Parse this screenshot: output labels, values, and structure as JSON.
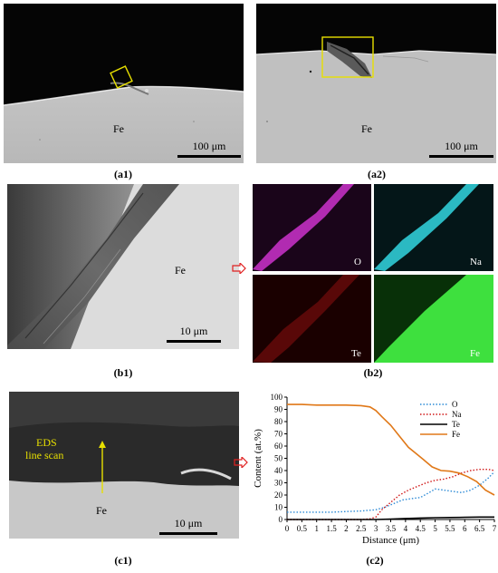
{
  "figure": {
    "panels": {
      "a1": {
        "label": "(a1)",
        "fe": "Fe",
        "scale": "100 μm"
      },
      "a2": {
        "label": "(a2)",
        "fe": "Fe",
        "scale": "100 μm"
      },
      "b1": {
        "label": "(b1)",
        "fe": "Fe",
        "scale": "10 μm"
      },
      "b2": {
        "label": "(b2)",
        "maps": [
          "O",
          "Na",
          "Te",
          "Fe"
        ]
      },
      "c1": {
        "label": "(c1)",
        "fe": "Fe",
        "scale": "10 μm",
        "eds_line1": "EDS",
        "eds_line2": "line scan"
      },
      "c2": {
        "label": "(c2)"
      }
    },
    "colors": {
      "box": "#e8e000",
      "arrow": "#e02020",
      "map_O": "#cc33cc",
      "map_Na": "#33d6e0",
      "map_Te": "#d01818",
      "map_Fe": "#3ee03e"
    }
  },
  "chart_data": {
    "type": "line",
    "xlabel": "Distance (μm)",
    "ylabel": "Content (at.%)",
    "xlim": [
      0,
      7
    ],
    "ylim": [
      0,
      100
    ],
    "xticks": [
      0,
      0.5,
      1,
      1.5,
      2,
      2.5,
      3,
      3.5,
      4,
      4.5,
      5,
      5.5,
      6,
      6.5,
      7
    ],
    "yticks": [
      0,
      10,
      20,
      30,
      40,
      50,
      60,
      70,
      80,
      90,
      100
    ],
    "legend_position": "top-right",
    "series": [
      {
        "name": "O",
        "color": "#2e8bd6",
        "style": "dotted",
        "x": [
          0,
          0.5,
          1,
          1.5,
          2,
          2.5,
          3,
          3.3,
          3.6,
          3.9,
          4.2,
          4.5,
          4.8,
          5.0,
          5.3,
          5.6,
          5.9,
          6.2,
          6.5,
          6.8,
          7
        ],
        "y": [
          6,
          6,
          6,
          6,
          6.5,
          7,
          8,
          10,
          13,
          16,
          17,
          18,
          22,
          25,
          24,
          23,
          22,
          24,
          28,
          34,
          39
        ]
      },
      {
        "name": "Na",
        "color": "#d01818",
        "style": "dotted",
        "x": [
          0,
          0.5,
          1,
          1.5,
          2,
          2.5,
          2.8,
          3.0,
          3.2,
          3.5,
          3.8,
          4.1,
          4.4,
          4.7,
          5.0,
          5.3,
          5.6,
          5.9,
          6.2,
          6.5,
          6.8,
          7
        ],
        "y": [
          0,
          0,
          0,
          0,
          0,
          0,
          0.5,
          2,
          8,
          14,
          20,
          24,
          27,
          30,
          32,
          33,
          35,
          38,
          40,
          41,
          41,
          40
        ]
      },
      {
        "name": "Te",
        "color": "#000000",
        "style": "solid",
        "x": [
          0,
          1,
          2,
          3,
          3.5,
          4,
          4.5,
          5,
          5.5,
          6,
          6.5,
          7
        ],
        "y": [
          0,
          0,
          0,
          0,
          0.3,
          0.8,
          1.2,
          1.5,
          1.6,
          1.8,
          2.0,
          2.0
        ]
      },
      {
        "name": "Fe",
        "color": "#e07818",
        "style": "solid",
        "x": [
          0,
          0.5,
          1,
          1.5,
          2,
          2.5,
          2.8,
          3.0,
          3.2,
          3.5,
          3.8,
          4.1,
          4.3,
          4.6,
          4.9,
          5.2,
          5.5,
          5.8,
          6.1,
          6.4,
          6.7,
          7
        ],
        "y": [
          94,
          94,
          93.5,
          93.5,
          93.5,
          93,
          92,
          89,
          84,
          77,
          68,
          59,
          55,
          49,
          43,
          40,
          39.5,
          38,
          35,
          31,
          24,
          20
        ]
      }
    ]
  }
}
